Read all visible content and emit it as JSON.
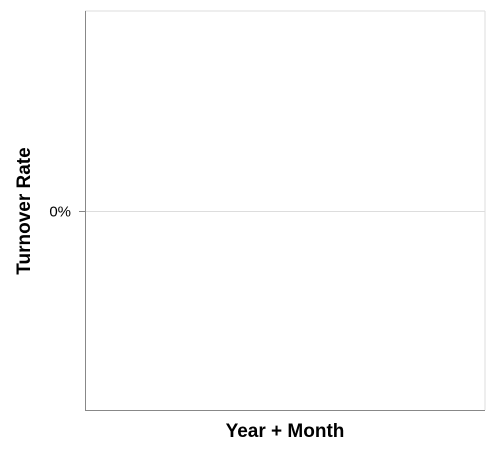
{
  "chart_data": {
    "type": "line",
    "title": "",
    "xlabel": "Year + Month",
    "ylabel": "Turnover Rate",
    "x": [],
    "series": [],
    "y_ticks": [
      {
        "value": 0,
        "label": "0%"
      }
    ],
    "ylim": [
      -1,
      1
    ],
    "grid": true,
    "legend": "none",
    "colors": {
      "axis": "#888888",
      "frame": "#dddddd",
      "grid": "#dddddd",
      "tick": "#888888",
      "text": "#000000"
    }
  }
}
